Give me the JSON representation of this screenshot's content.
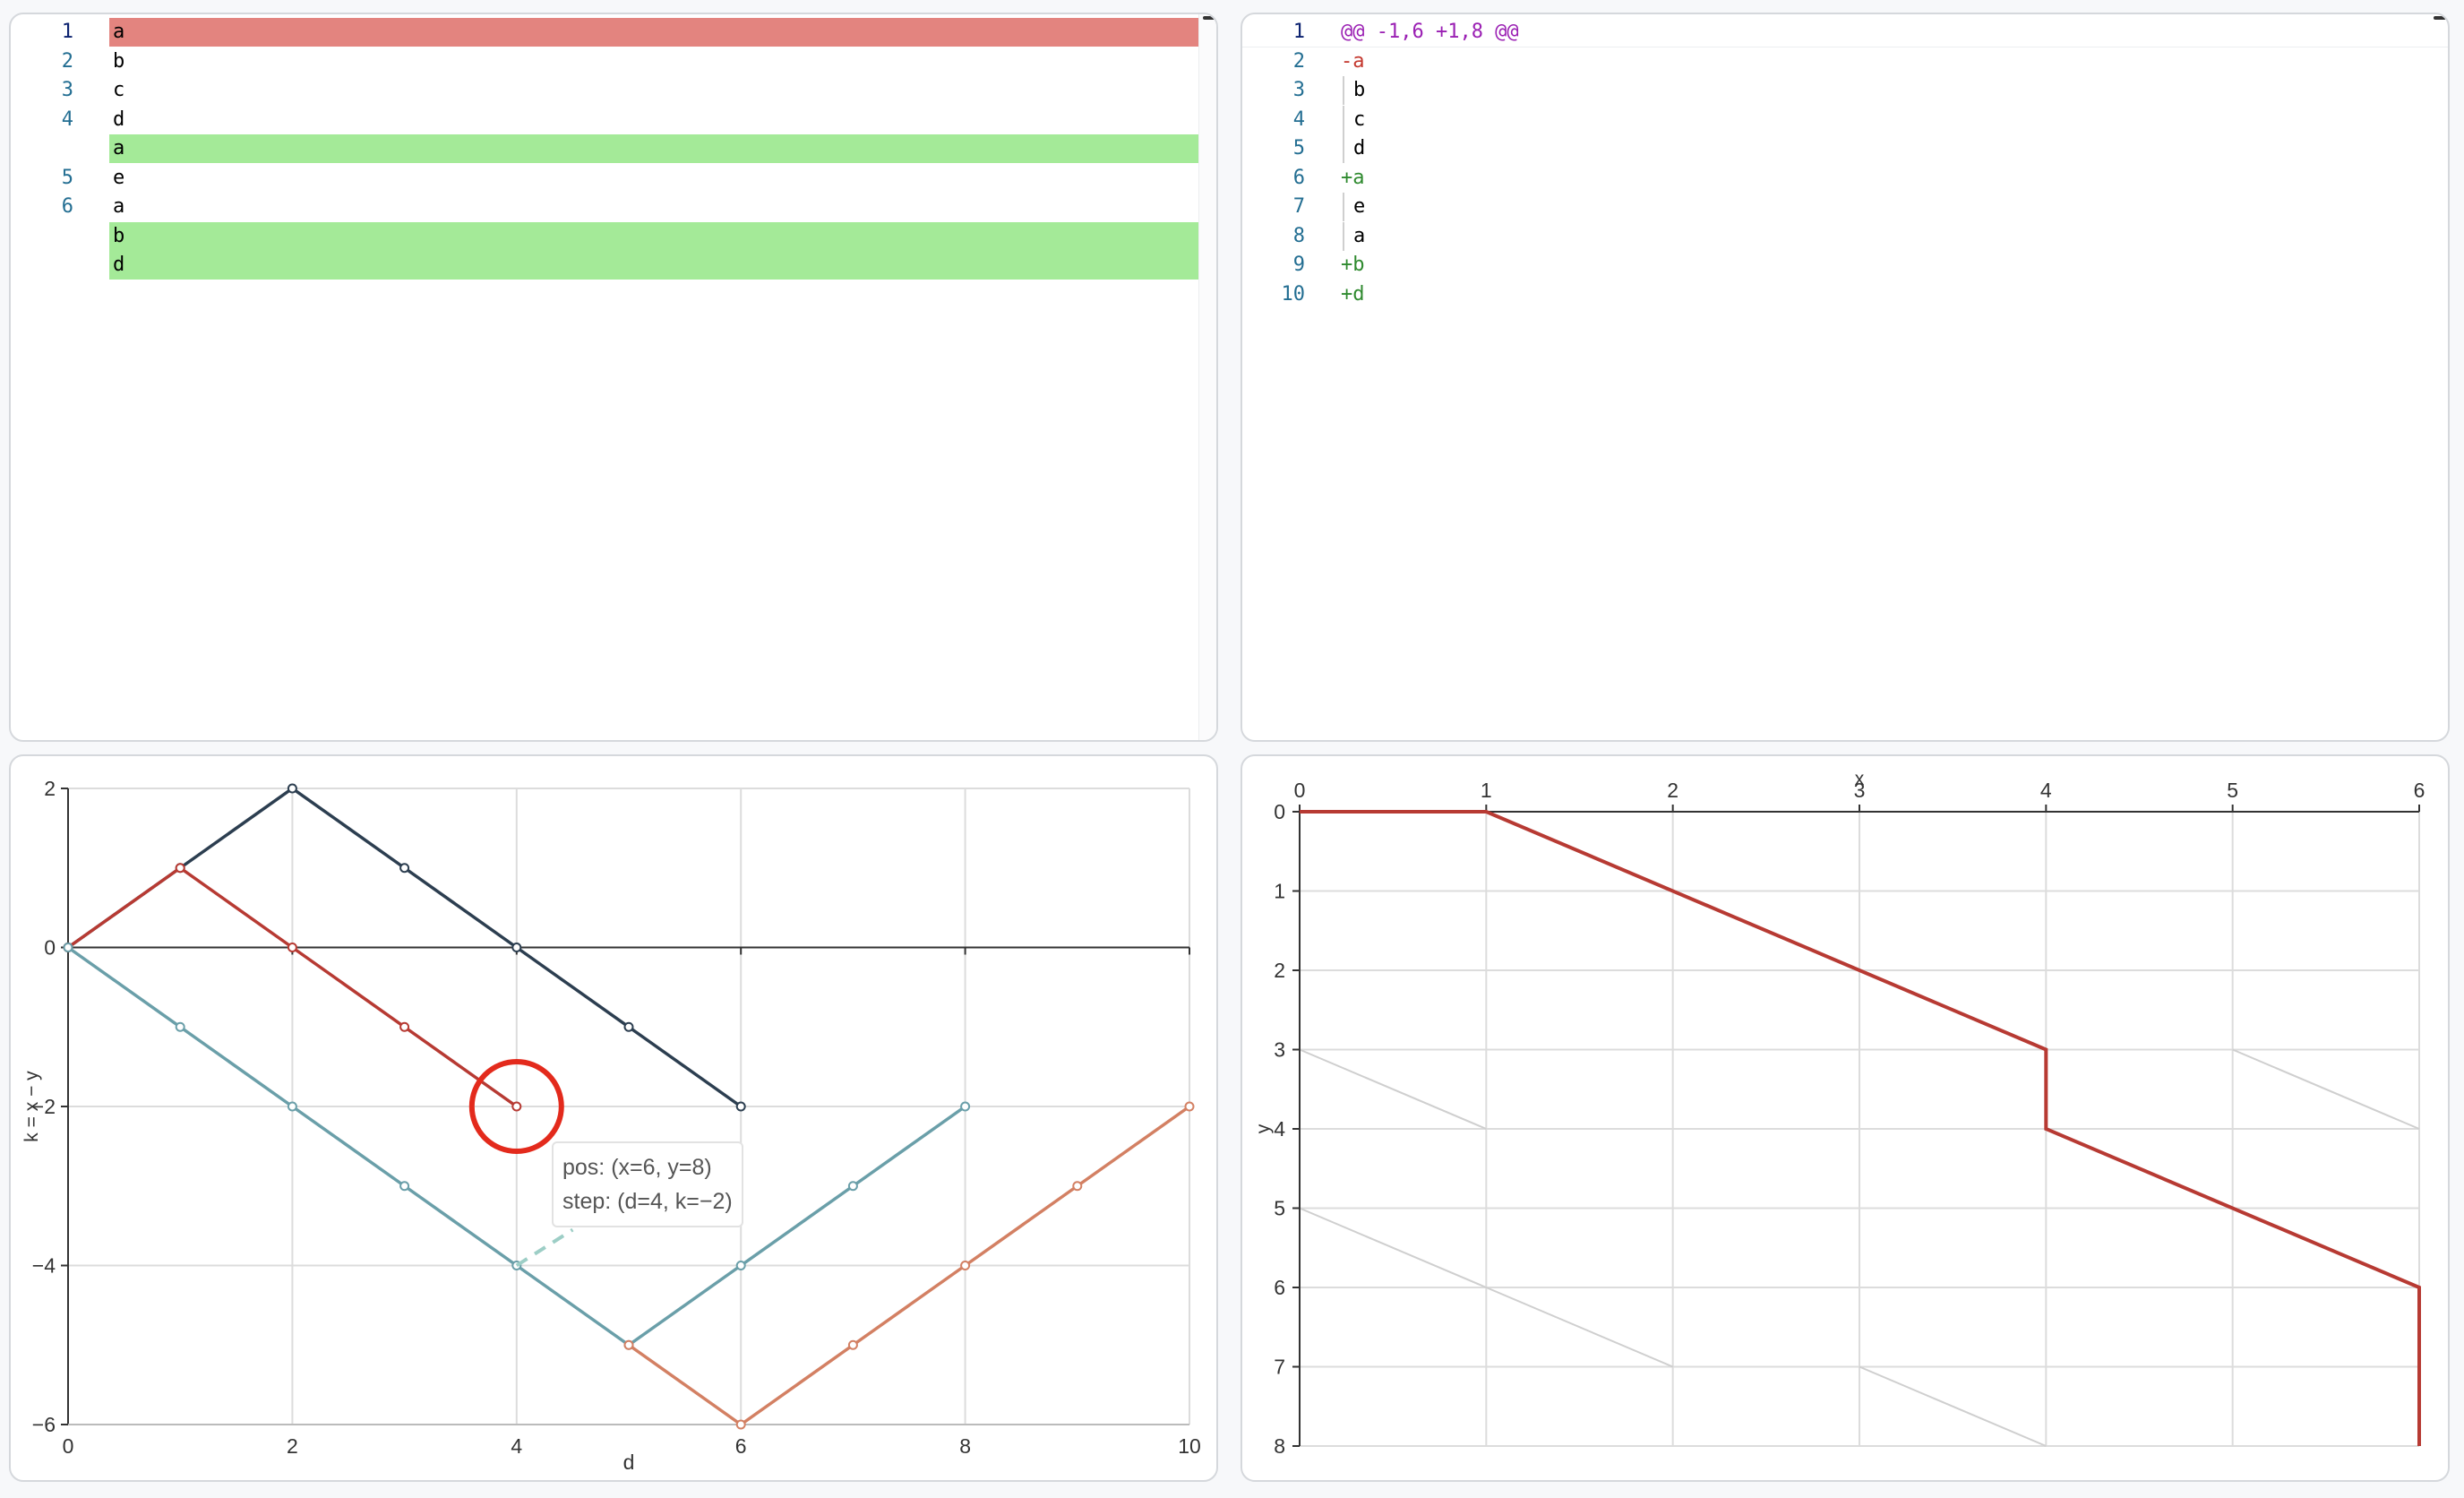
{
  "left_editor": {
    "lines": [
      {
        "num": "1",
        "text": "a",
        "highlight": "#e3847f",
        "active": true
      },
      {
        "num": "2",
        "text": "b",
        "highlight": null
      },
      {
        "num": "3",
        "text": "c",
        "highlight": null
      },
      {
        "num": "4",
        "text": "d",
        "highlight": null
      },
      {
        "num": "",
        "text": "a",
        "highlight": "#a4ea98"
      },
      {
        "num": "5",
        "text": "e",
        "highlight": null
      },
      {
        "num": "6",
        "text": "a",
        "highlight": null
      },
      {
        "num": "",
        "text": "b",
        "highlight": "#a4ea98"
      },
      {
        "num": "",
        "text": "d",
        "highlight": "#a4ea98"
      }
    ]
  },
  "right_editor": {
    "lines": [
      {
        "num": "1",
        "text": "@@ -1,6 +1,8 @@",
        "kind": "hunk",
        "active": true
      },
      {
        "num": "2",
        "text": "-a",
        "kind": "del"
      },
      {
        "num": "3",
        "text": "b",
        "kind": "ctx"
      },
      {
        "num": "4",
        "text": "c",
        "kind": "ctx"
      },
      {
        "num": "5",
        "text": "d",
        "kind": "ctx"
      },
      {
        "num": "6",
        "text": "+a",
        "kind": "add"
      },
      {
        "num": "7",
        "text": "e",
        "kind": "ctx"
      },
      {
        "num": "8",
        "text": "a",
        "kind": "ctx"
      },
      {
        "num": "9",
        "text": "+b",
        "kind": "add"
      },
      {
        "num": "10",
        "text": "+d",
        "kind": "add"
      }
    ],
    "colors": {
      "hunk": "#9a1fb3",
      "del": "#c4382e",
      "add": "#2f8a2f",
      "ctx": "#000000"
    }
  },
  "tooltip": {
    "pos": "pos: (x=6, y=8)",
    "step": "step: (d=4, k=−2)"
  },
  "chart_data": [
    {
      "type": "line",
      "xlabel": "d",
      "ylabel": "k = x − y",
      "xlim": [
        0,
        10
      ],
      "ylim": [
        -6,
        2
      ],
      "xticks": [
        "0",
        "2",
        "4",
        "6",
        "8",
        "10"
      ],
      "yticks": [
        "2",
        "0",
        "−2",
        "−4",
        "−6"
      ],
      "grid": true,
      "series": [
        {
          "color": "#2c3e50",
          "points": [
            [
              0,
              0
            ],
            [
              1,
              1
            ],
            [
              2,
              2
            ],
            [
              3,
              1
            ],
            [
              4,
              0
            ],
            [
              5,
              -1
            ],
            [
              6,
              -2
            ]
          ]
        },
        {
          "color": "#b73a33",
          "points": [
            [
              0,
              0
            ],
            [
              1,
              1
            ],
            [
              2,
              0
            ],
            [
              3,
              -1
            ],
            [
              4,
              -2
            ]
          ]
        },
        {
          "color": "#6a9fa9",
          "points": [
            [
              0,
              0
            ],
            [
              1,
              -1
            ],
            [
              2,
              -2
            ],
            [
              3,
              -3
            ],
            [
              4,
              -4
            ],
            [
              5,
              -5
            ],
            [
              6,
              -4
            ],
            [
              7,
              -3
            ],
            [
              8,
              -2
            ]
          ]
        },
        {
          "color": "#d38063",
          "points": [
            [
              5,
              -5
            ],
            [
              6,
              -6
            ],
            [
              7,
              -5
            ],
            [
              8,
              -4
            ],
            [
              9,
              -3
            ],
            [
              10,
              -2
            ]
          ]
        }
      ],
      "dashed_link": {
        "from": [
          4,
          -4
        ],
        "to": [
          4.5,
          -3.55
        ],
        "color": "#9dcec6"
      },
      "highlight_circle": {
        "at": [
          4,
          -2
        ],
        "color": "#e32a1c"
      }
    },
    {
      "type": "line",
      "xlabel": "x",
      "ylabel": "y",
      "xlim": [
        0,
        6
      ],
      "ylim": [
        0,
        8
      ],
      "y_inverted": true,
      "xticks": [
        "0",
        "1",
        "2",
        "3",
        "4",
        "5",
        "6"
      ],
      "yticks": [
        "0",
        "1",
        "2",
        "3",
        "4",
        "5",
        "6",
        "7",
        "8"
      ],
      "grid": true,
      "diagonals": [
        [
          [
            0,
            3
          ],
          [
            1,
            4
          ]
        ],
        [
          [
            5,
            3
          ],
          [
            6,
            4
          ]
        ],
        [
          [
            0,
            5
          ],
          [
            1,
            6
          ]
        ],
        [
          [
            1,
            6
          ],
          [
            2,
            7
          ]
        ],
        [
          [
            3,
            7
          ],
          [
            4,
            8
          ]
        ]
      ],
      "path": {
        "color": "#b73a33",
        "points": [
          [
            0,
            0
          ],
          [
            1,
            0
          ],
          [
            4,
            3
          ],
          [
            4,
            4
          ],
          [
            6,
            6
          ],
          [
            6,
            8
          ]
        ]
      }
    }
  ]
}
